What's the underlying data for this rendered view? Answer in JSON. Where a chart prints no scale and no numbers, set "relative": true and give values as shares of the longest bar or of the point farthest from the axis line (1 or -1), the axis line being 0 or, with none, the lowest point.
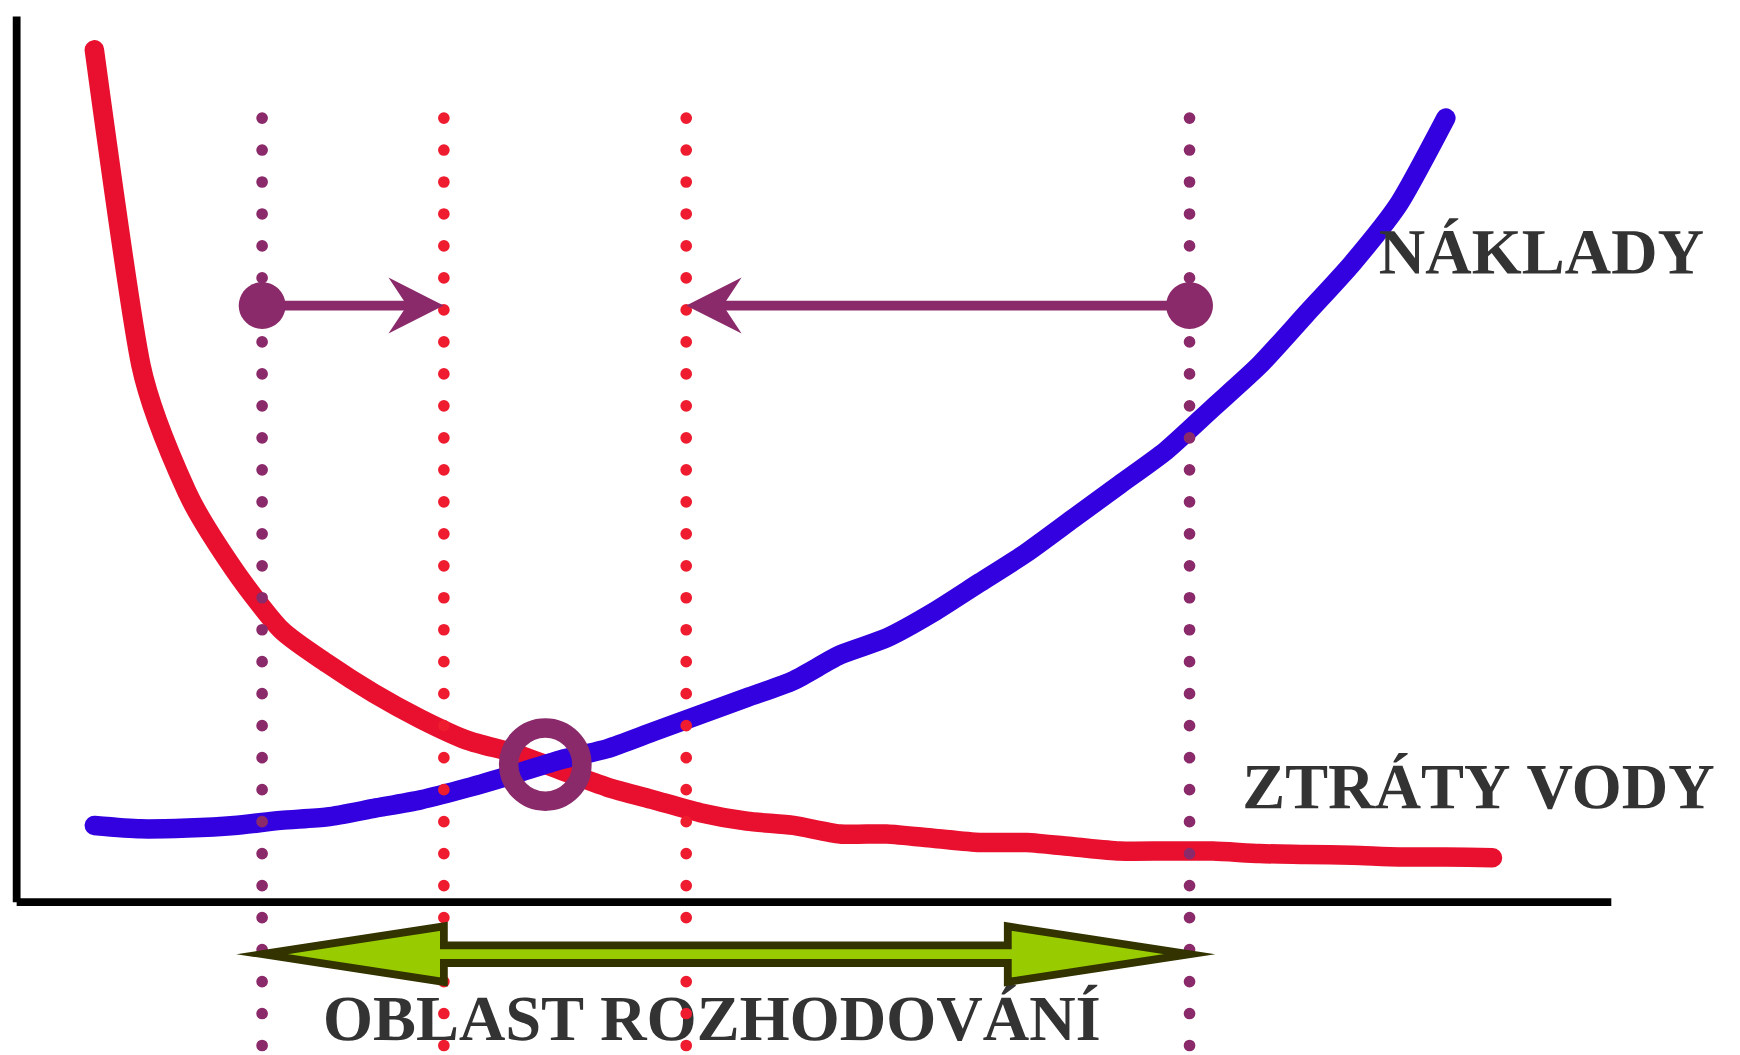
{
  "chart_data": {
    "type": "line",
    "relative": true,
    "categories": [
      null,
      null,
      null,
      null,
      null,
      null,
      null,
      null,
      null,
      null,
      null,
      null,
      null,
      null,
      null,
      null,
      null,
      null,
      null,
      null,
      null,
      null,
      null,
      null,
      null,
      null,
      null,
      null,
      null,
      null,
      null
    ],
    "series": [
      {
        "name": "ZTRÁTY VODY",
        "color": "#e8102e",
        "values": [
          1.0,
          0.63,
          0.48,
          0.39,
          0.32,
          0.28,
          0.245,
          0.215,
          0.19,
          0.175,
          0.155,
          0.135,
          0.12,
          0.105,
          0.095,
          0.09,
          0.08,
          0.08,
          0.075,
          0.07,
          0.07,
          0.065,
          0.06,
          0.06,
          0.06,
          0.057,
          0.056,
          0.055,
          0.053,
          0.053,
          0.052
        ]
      },
      {
        "name": "NÁKLADY",
        "color": "#3300e0",
        "values": [
          0.09,
          0.086,
          0.087,
          0.09,
          0.096,
          0.1,
          0.11,
          0.12,
          0.134,
          0.15,
          0.167,
          0.18,
          0.2,
          0.22,
          0.24,
          0.26,
          0.29,
          0.31,
          0.34,
          0.375,
          0.41,
          0.45,
          0.49,
          0.53,
          0.58,
          0.63,
          0.69,
          0.75,
          0.82,
          0.92,
          null
        ]
      }
    ],
    "annotations": [
      "OBLAST ROZHODOVÁNÍ"
    ]
  }
}
